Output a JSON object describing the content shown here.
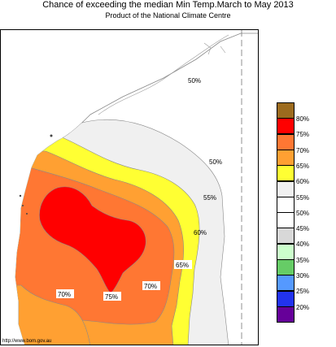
{
  "header": {
    "title": "Chance of exceeding the median Min Temp.March to May 2013",
    "subtitle": "Product of the National Climate Centre"
  },
  "footer": {
    "source": "http://www.bom.gov.au"
  },
  "map": {
    "contour_labels": {
      "c50_north": "50%",
      "c50_mid": "50%",
      "c55": "55%",
      "c60": "60%",
      "c65": "65%",
      "c70_west": "70%",
      "c70_east": "70%",
      "c75": "75%"
    }
  },
  "legend": {
    "items": [
      {
        "label": "80%",
        "color": "#9c6b1e"
      },
      {
        "label": "75%",
        "color": "#ff0000"
      },
      {
        "label": "70%",
        "color": "#ff7733"
      },
      {
        "label": "65%",
        "color": "#ffa032"
      },
      {
        "label": "60%",
        "color": "#ffff33"
      },
      {
        "label": "55%",
        "color": "#f0f0f0"
      },
      {
        "label": "50%",
        "color": "#ffffff"
      },
      {
        "label": "45%",
        "color": "#ffffff"
      },
      {
        "label": "40%",
        "color": "#d8d8d8"
      },
      {
        "label": "35%",
        "color": "#ccffcc"
      },
      {
        "label": "30%",
        "color": "#66cc66"
      },
      {
        "label": "25%",
        "color": "#5599ff"
      },
      {
        "label": "20%",
        "color": "#2233ee"
      },
      {
        "label": "",
        "color": "#660099"
      }
    ]
  }
}
